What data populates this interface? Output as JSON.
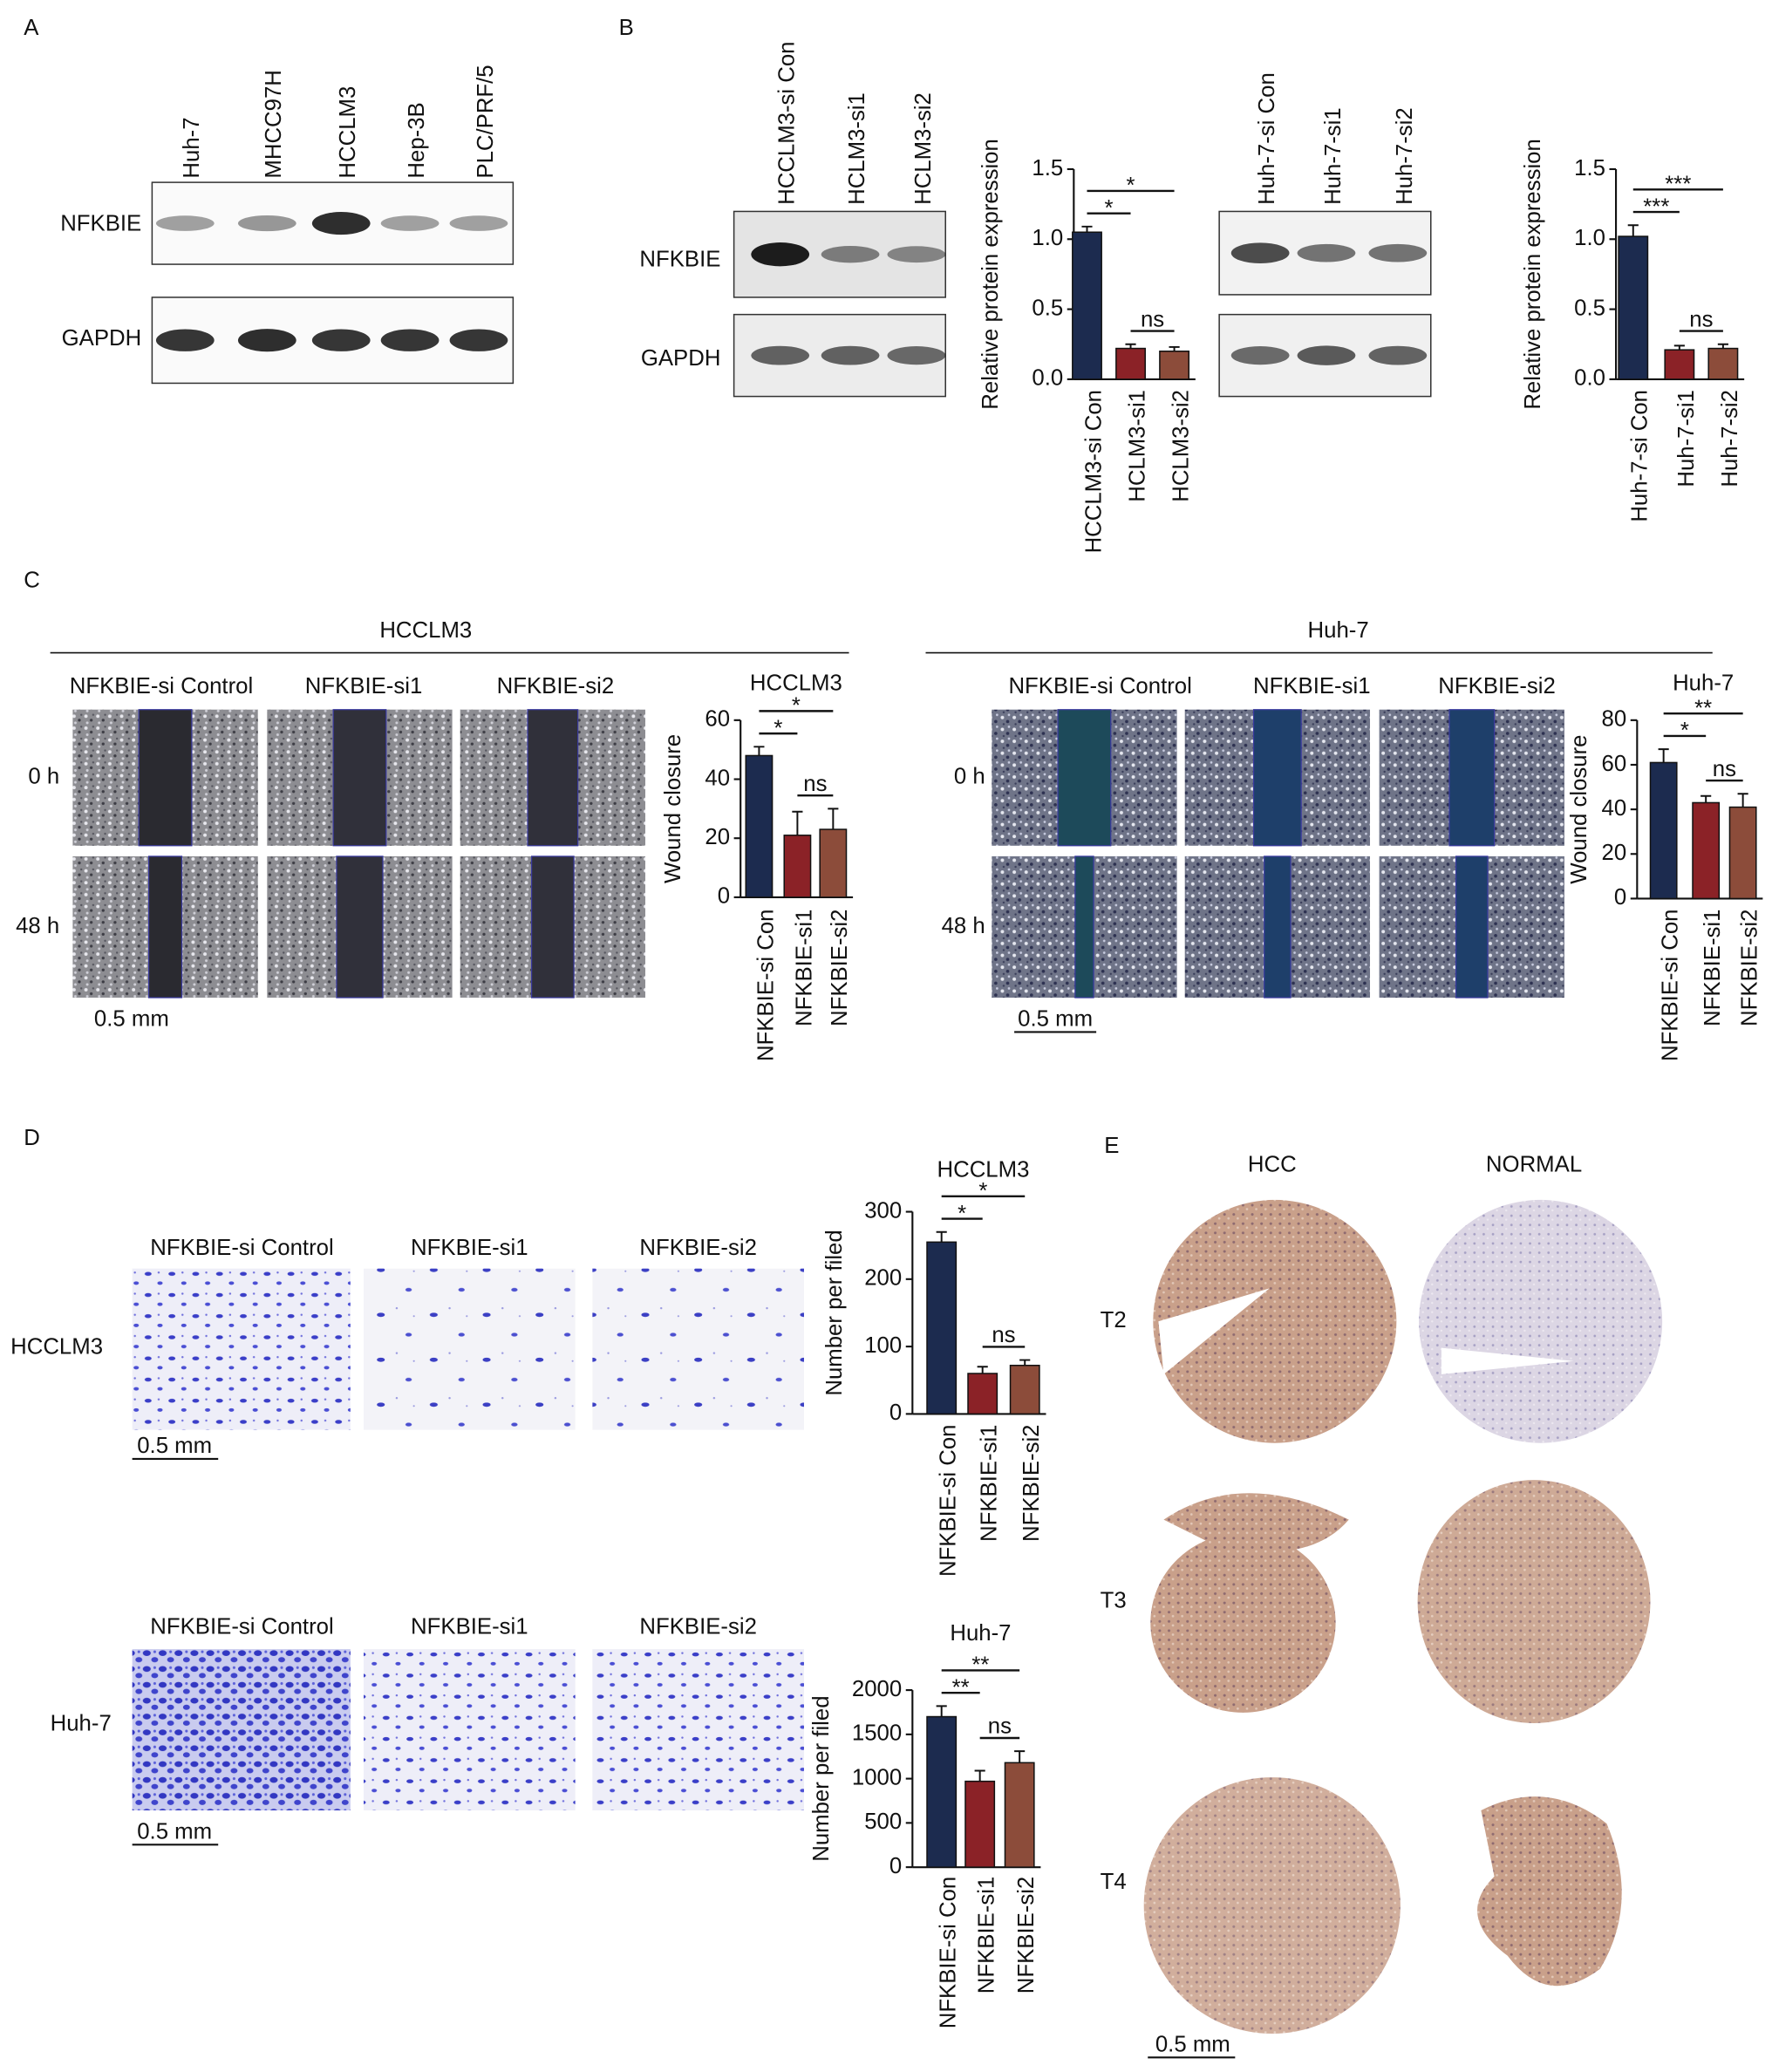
{
  "figure": {
    "A": {
      "letter": "A",
      "lanes": [
        "Huh-7",
        "MHCC97H",
        "HCCLM3",
        "Hep-3B",
        "PLC/PRF/5"
      ],
      "rows": [
        "NFKBIE",
        "GAPDH"
      ]
    },
    "B": {
      "letter": "B",
      "blots": [
        {
          "lanes": [
            "HCCLM3-si Con",
            "HCLM3-si1",
            "HCLM3-si2"
          ],
          "rows": [
            "NFKBIE",
            "GAPDH"
          ]
        },
        {
          "lanes": [
            "Huh-7-si Con",
            "Huh-7-si1",
            "Huh-7-si2"
          ]
        }
      ]
    },
    "C": {
      "letter": "C",
      "groups": [
        {
          "title": "HCCLM3",
          "conditions": [
            "NFKBIE-si Control",
            "NFKBIE-si1",
            "NFKBIE-si2"
          ],
          "times": [
            "0 h",
            "48 h"
          ],
          "scale": "0.5 mm"
        },
        {
          "title": "Huh-7",
          "conditions": [
            "NFKBIE-si Control",
            "NFKBIE-si1",
            "NFKBIE-si2"
          ],
          "times": [
            "0 h",
            "48 h"
          ],
          "scale": "0.5 mm"
        }
      ]
    },
    "D": {
      "letter": "D",
      "groups": [
        {
          "cell": "HCCLM3",
          "conditions": [
            "NFKBIE-si Control",
            "NFKBIE-si1",
            "NFKBIE-si2"
          ],
          "scale": "0.5 mm"
        },
        {
          "cell": "Huh-7",
          "conditions": [
            "NFKBIE-si Control",
            "NFKBIE-si1",
            "NFKBIE-si2"
          ],
          "scale": "0.5 mm"
        }
      ]
    },
    "E": {
      "letter": "E",
      "columns": [
        "HCC",
        "NORMAL"
      ],
      "rows": [
        "T2",
        "T3",
        "T4"
      ],
      "scale": "0.5 mm"
    }
  },
  "chart_data": [
    {
      "type": "bar",
      "ylabel": "Relative protein expression",
      "categories": [
        "HCCLM3-si Con",
        "HCLM3-si1",
        "HCLM3-si2"
      ],
      "values": [
        1.05,
        0.22,
        0.2
      ],
      "errors": [
        0.04,
        0.03,
        0.03
      ],
      "colors": [
        "#1c2b4f",
        "#8b2227",
        "#8c4c3a"
      ],
      "ylim": [
        0,
        1.5
      ],
      "yticks": [
        {
          "value": 0,
          "label": "0.0"
        },
        {
          "value": 0.5,
          "label": "0.5"
        },
        {
          "value": 1,
          "label": "1.0"
        },
        {
          "value": 1.5,
          "label": "1.5"
        }
      ],
      "comparisons": [
        {
          "groups": [
            0,
            1
          ],
          "label": "*"
        },
        {
          "groups": [
            0,
            2
          ],
          "label": "*"
        },
        {
          "groups": [
            1,
            2
          ],
          "label": "ns"
        }
      ]
    },
    {
      "type": "bar",
      "ylabel": "Relative protein expression",
      "categories": [
        "Huh-7-si Con",
        "Huh-7-si1",
        "Huh-7-si2"
      ],
      "values": [
        1.02,
        0.21,
        0.22
      ],
      "errors": [
        0.08,
        0.03,
        0.03
      ],
      "colors": [
        "#1c2b4f",
        "#8b2227",
        "#8c4c3a"
      ],
      "ylim": [
        0,
        1.5
      ],
      "yticks": [
        {
          "value": 0,
          "label": "0.0"
        },
        {
          "value": 0.5,
          "label": "0.5"
        },
        {
          "value": 1,
          "label": "1.0"
        },
        {
          "value": 1.5,
          "label": "1.5"
        }
      ],
      "comparisons": [
        {
          "groups": [
            0,
            1
          ],
          "label": "***"
        },
        {
          "groups": [
            0,
            2
          ],
          "label": "***"
        },
        {
          "groups": [
            1,
            2
          ],
          "label": "ns"
        }
      ]
    },
    {
      "type": "bar",
      "title": "HCCLM3",
      "ylabel": "Wound closure",
      "categories": [
        "NFKBIE-si Con",
        "NFKBIE-si1",
        "NFKBIE-si2"
      ],
      "values": [
        48,
        21,
        23
      ],
      "errors": [
        3,
        8,
        7
      ],
      "colors": [
        "#1c2b4f",
        "#8b2227",
        "#8c4c3a"
      ],
      "ylim": [
        0,
        60
      ],
      "yticks": [
        0,
        20,
        40,
        60
      ],
      "comparisons": [
        {
          "groups": [
            0,
            1
          ],
          "label": "*"
        },
        {
          "groups": [
            0,
            2
          ],
          "label": "*"
        },
        {
          "groups": [
            1,
            2
          ],
          "label": "ns"
        }
      ]
    },
    {
      "type": "bar",
      "title": "Huh-7",
      "ylabel": "Wound closure",
      "categories": [
        "NFKBIE-si Con",
        "NFKBIE-si1",
        "NFKBIE-si2"
      ],
      "values": [
        61,
        43,
        41
      ],
      "errors": [
        6,
        3,
        6
      ],
      "colors": [
        "#1c2b4f",
        "#8b2227",
        "#8c4c3a"
      ],
      "ylim": [
        0,
        80
      ],
      "yticks": [
        0,
        20,
        40,
        60,
        80
      ],
      "comparisons": [
        {
          "groups": [
            0,
            1
          ],
          "label": "*"
        },
        {
          "groups": [
            0,
            2
          ],
          "label": "**"
        },
        {
          "groups": [
            1,
            2
          ],
          "label": "ns"
        }
      ]
    },
    {
      "type": "bar",
      "title": "HCCLM3",
      "ylabel": "Number per filed",
      "categories": [
        "NFKBIE-si Con",
        "NFKBIE-si1",
        "NFKBIE-si2"
      ],
      "values": [
        255,
        60,
        72
      ],
      "errors": [
        15,
        10,
        8
      ],
      "colors": [
        "#1c2b4f",
        "#8b2227",
        "#8c4c3a"
      ],
      "ylim": [
        0,
        300
      ],
      "yticks": [
        0,
        100,
        200,
        300
      ],
      "comparisons": [
        {
          "groups": [
            0,
            1
          ],
          "label": "*"
        },
        {
          "groups": [
            0,
            2
          ],
          "label": "*"
        },
        {
          "groups": [
            1,
            2
          ],
          "label": "ns"
        }
      ]
    },
    {
      "type": "bar",
      "title": "Huh-7",
      "ylabel": "Number per filed",
      "categories": [
        "NFKBIE-si Con",
        "NFKBIE-si1",
        "NFKBIE-si2"
      ],
      "values": [
        1700,
        970,
        1180
      ],
      "errors": [
        120,
        120,
        130
      ],
      "colors": [
        "#1c2b4f",
        "#8b2227",
        "#8c4c3a"
      ],
      "ylim": [
        0,
        2000
      ],
      "yticks": [
        0,
        500,
        1000,
        1500,
        2000
      ],
      "comparisons": [
        {
          "groups": [
            0,
            1
          ],
          "label": "**"
        },
        {
          "groups": [
            0,
            2
          ],
          "label": "**"
        },
        {
          "groups": [
            1,
            2
          ],
          "label": "ns"
        }
      ]
    }
  ]
}
